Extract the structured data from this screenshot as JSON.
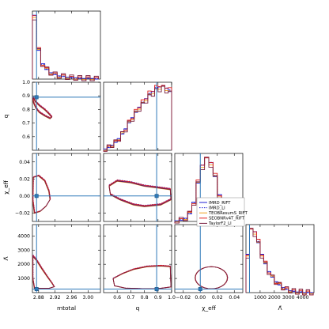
{
  "chart_data": {
    "type": "corner",
    "parameters": [
      {
        "key": "mtotal",
        "label": "mtotal",
        "range": [
          2.865,
          3.03
        ],
        "ticks": [
          "2.88",
          "2.92",
          "2.96",
          "3.00"
        ],
        "tick_values": [
          2.88,
          2.92,
          2.96,
          3.0
        ],
        "injected": 2.875
      },
      {
        "key": "q",
        "label": "q",
        "range": [
          0.5,
          1.0
        ],
        "ticks": [
          "0.6",
          "0.7",
          "0.8",
          "0.9",
          "1.0"
        ],
        "tick_values": [
          0.6,
          0.7,
          0.8,
          0.9,
          1.0
        ],
        "injected": 0.89
      },
      {
        "key": "chi_eff",
        "label": "χ_eff",
        "range": [
          -0.03,
          0.05
        ],
        "ticks": [
          "−0.02",
          "0.00",
          "0.02",
          "0.04"
        ],
        "tick_values": [
          -0.02,
          0.0,
          0.02,
          0.04
        ],
        "injected": 0.0
      },
      {
        "key": "lambda_tilde",
        "label": "Λ̃",
        "range": [
          0,
          4800
        ],
        "ticks": [
          "1000",
          "2000",
          "3000",
          "4000"
        ],
        "tick_values": [
          1000,
          2000,
          3000,
          4000
        ],
        "injected": 250
      }
    ],
    "series": [
      {
        "name": "IMRD_RIFT",
        "color": "#1f1fd6",
        "dash": "none"
      },
      {
        "name": "IMRD_LI",
        "color": "#1f1fd6",
        "dash": "1.5,1.5"
      },
      {
        "name": "TEOBResumS_RIFT",
        "color": "#f0a020",
        "dash": "none"
      },
      {
        "name": "SEOBNRv4T_RIFT",
        "color": "#e02020",
        "dash": "none"
      },
      {
        "name": "TaylorF2_LI",
        "color": "#7a2040",
        "dash": "none"
      }
    ],
    "marginal_histograms": {
      "mtotal": {
        "bins": [
          2.865,
          2.875,
          2.885,
          2.895,
          2.905,
          2.915,
          2.925,
          2.935,
          2.945,
          2.955,
          2.965,
          2.975,
          2.985,
          2.995,
          3.005,
          3.015,
          3.025
        ],
        "density": [
          1.0,
          0.45,
          0.24,
          0.15,
          0.1,
          0.07,
          0.05,
          0.04,
          0.03,
          0.02,
          0.02,
          0.01,
          0.01,
          0.01,
          0.01,
          0.0
        ]
      },
      "q": {
        "bins": [
          0.5,
          0.525,
          0.55,
          0.575,
          0.6,
          0.625,
          0.65,
          0.675,
          0.7,
          0.725,
          0.75,
          0.775,
          0.8,
          0.825,
          0.85,
          0.875,
          0.9,
          0.925,
          0.95,
          0.975,
          1.0
        ],
        "density": [
          0.02,
          0.04,
          0.08,
          0.12,
          0.18,
          0.25,
          0.33,
          0.42,
          0.5,
          0.58,
          0.66,
          0.72,
          0.79,
          0.85,
          0.9,
          0.94,
          0.97,
          0.98,
          0.95,
          0.9
        ]
      },
      "chi_eff": {
        "bins": [
          -0.03,
          -0.025,
          -0.02,
          -0.015,
          -0.01,
          -0.005,
          0.0,
          0.005,
          0.01,
          0.015,
          0.02,
          0.025,
          0.03,
          0.035,
          0.04,
          0.045,
          0.05
        ],
        "density": [
          0.01,
          0.02,
          0.05,
          0.12,
          0.3,
          0.6,
          0.88,
          1.0,
          0.92,
          0.7,
          0.42,
          0.2,
          0.08,
          0.03,
          0.01,
          0.0
        ]
      },
      "lambda_tilde": {
        "bins": [
          0,
          250,
          500,
          750,
          1000,
          1250,
          1500,
          1750,
          2000,
          2250,
          2500,
          2750,
          3000,
          3250,
          3500,
          3750,
          4000,
          4250,
          4500,
          4750
        ],
        "density": [
          0.6,
          1.0,
          0.95,
          0.78,
          0.6,
          0.45,
          0.33,
          0.24,
          0.17,
          0.12,
          0.08,
          0.05,
          0.03,
          0.02,
          0.01,
          0.01,
          0.0,
          0.0,
          0.0
        ]
      }
    },
    "legend_location": "inside chi_eff marginal panel, lower-right"
  }
}
